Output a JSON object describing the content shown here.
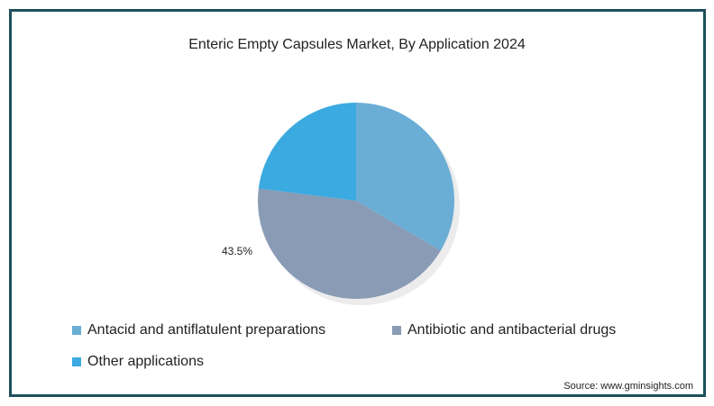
{
  "chart_data": {
    "type": "pie",
    "title": "Enteric Empty Capsules Market, By Application 2024",
    "slices": [
      {
        "name": "Antacid and antiflatulent preparations",
        "value": 33.5,
        "color": "#6aaed6",
        "label": ""
      },
      {
        "name": "Antibiotic and antibacterial drugs",
        "value": 43.5,
        "color": "#8a9bb5",
        "label": "43.5%"
      },
      {
        "name": "Other applications",
        "value": 23.0,
        "color": "#3aaae0",
        "label": ""
      }
    ],
    "legend_position": "bottom",
    "source": "Source: www.gminsights.com"
  }
}
